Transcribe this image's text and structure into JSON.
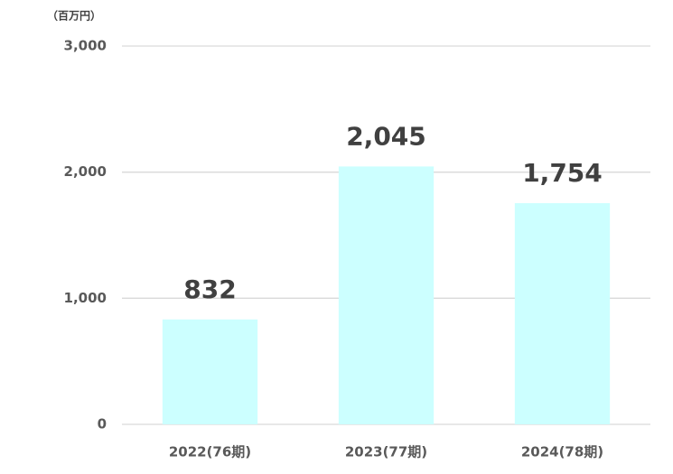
{
  "chart_data": {
    "type": "bar",
    "ylabel": "（百万円）",
    "categories": [
      "2022(76期)",
      "2023(77期)",
      "2024(78期)"
    ],
    "values": [
      832,
      2045,
      1754
    ],
    "value_labels": [
      "832",
      "2,045",
      "1,754"
    ],
    "color": "#ccffff",
    "ylim": [
      0,
      3000
    ],
    "yticks": [
      0,
      {
        "value": 1000,
        "label": "1,000"
      },
      {
        "value": 2000,
        "label": "2,000"
      },
      {
        "value": 3000,
        "label": "3,000"
      }
    ],
    "grid": true
  }
}
